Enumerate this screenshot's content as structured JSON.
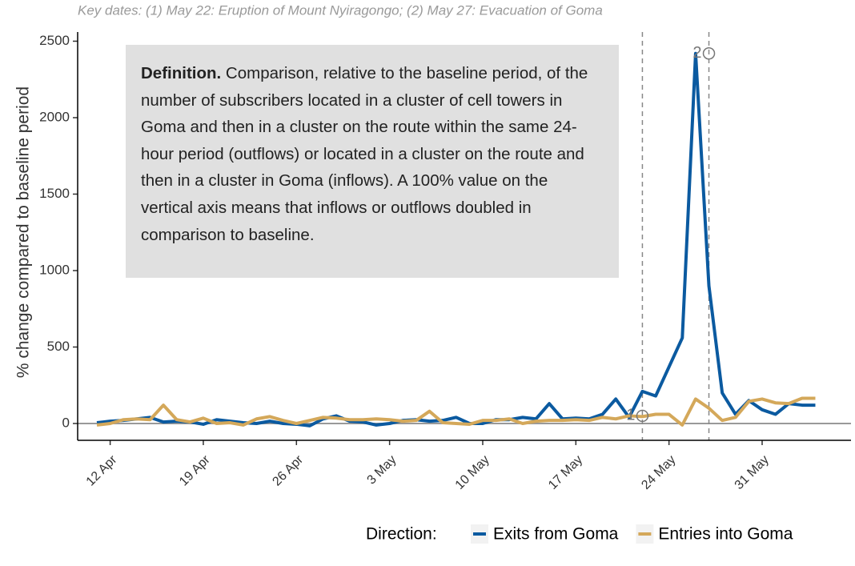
{
  "chart_data": {
    "type": "line",
    "subtitle": "Key dates: (1) May 22: Eruption of Mount Nyiragongo; (2) May 27: Evacuation of Goma",
    "definition_title": "Definition.",
    "definition": "Comparison, relative to the baseline period, of the number of subscribers located in a cluster of cell towers in Goma and then in a cluster on the route within the same 24-hour period (outflows) or located in a cluster on the route and then in a cluster in Goma (inflows). A 100% value on the vertical axis means that inflows or outflows doubled in comparison to baseline.",
    "ylabel": "% change compared to baseline period",
    "legend_title": "Direction:",
    "categories": [
      null,
      "12 Apr",
      null,
      null,
      null,
      null,
      null,
      null,
      "19 Apr",
      null,
      null,
      null,
      null,
      null,
      null,
      "26 Apr",
      null,
      null,
      null,
      null,
      null,
      null,
      "3 May",
      null,
      null,
      null,
      null,
      null,
      null,
      "10 May",
      null,
      null,
      null,
      null,
      null,
      null,
      "17 May",
      null,
      null,
      null,
      null,
      null,
      null,
      "24 May",
      null,
      null,
      null,
      null,
      null,
      null,
      "31 May",
      null,
      null,
      null,
      null
    ],
    "series": [
      {
        "name": "Exits from Goma",
        "color": "#0b5aa0",
        "values": [
          5,
          15,
          20,
          30,
          40,
          10,
          15,
          10,
          -5,
          25,
          15,
          5,
          0,
          15,
          0,
          -5,
          -15,
          30,
          50,
          15,
          10,
          -10,
          0,
          20,
          25,
          15,
          20,
          40,
          0,
          0,
          25,
          25,
          40,
          30,
          130,
          30,
          35,
          30,
          60,
          160,
          40,
          210,
          180,
          370,
          560,
          2420,
          900,
          200,
          60,
          150,
          90,
          60,
          130,
          120,
          120
        ]
      },
      {
        "name": "Entries into Goma",
        "color": "#d4a85a",
        "values": [
          -10,
          0,
          25,
          30,
          25,
          120,
          25,
          10,
          35,
          0,
          5,
          -10,
          30,
          45,
          20,
          0,
          20,
          40,
          35,
          25,
          25,
          30,
          25,
          15,
          20,
          80,
          5,
          0,
          -5,
          20,
          20,
          30,
          0,
          15,
          20,
          20,
          25,
          20,
          40,
          30,
          50,
          45,
          60,
          60,
          -10,
          160,
          100,
          20,
          40,
          145,
          160,
          135,
          130,
          165,
          165
        ]
      }
    ],
    "annotations": [
      {
        "label": "1",
        "x": 41,
        "y": 50
      },
      {
        "label": "2",
        "x": 46,
        "y": 2420
      }
    ],
    "ylim": [
      -110,
      2560
    ],
    "yticks": [
      0,
      500,
      1000,
      1500,
      2000,
      2500
    ]
  }
}
